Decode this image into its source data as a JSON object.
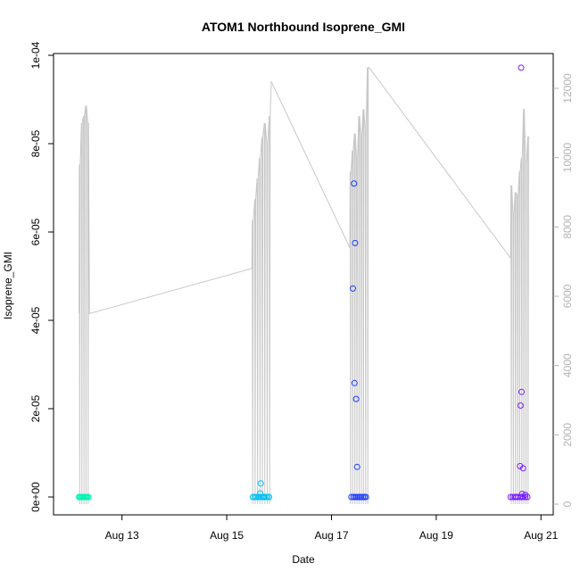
{
  "chart_data": {
    "type": "scatter",
    "title": "ATOM1 Northbound Isoprene_GMI",
    "xlabel": "Date",
    "ylabel": "Isoprene_GMI",
    "x_ticks": [
      {
        "label": "Aug 13",
        "day": 13
      },
      {
        "label": "Aug 15",
        "day": 15
      },
      {
        "label": "Aug 17",
        "day": 17
      },
      {
        "label": "Aug 19",
        "day": 19
      },
      {
        "label": "Aug 21",
        "day": 21
      }
    ],
    "xlim": [
      12.0,
      21.2
    ],
    "ylim": [
      0,
      0.0001
    ],
    "y_ticks": [
      {
        "label": "0e+00",
        "value": 0
      },
      {
        "label": "2e-05",
        "value": 2e-05
      },
      {
        "label": "4e-05",
        "value": 4e-05
      },
      {
        "label": "6e-05",
        "value": 6e-05
      },
      {
        "label": "8e-05",
        "value": 8e-05
      },
      {
        "label": "1e-04",
        "value": 0.0001
      }
    ],
    "y2_ticks": [
      {
        "label": "0",
        "value": 0
      },
      {
        "label": "2000",
        "value": 2000
      },
      {
        "label": "4000",
        "value": 4000
      },
      {
        "label": "6000",
        "value": 6000
      },
      {
        "label": "8000",
        "value": 8000
      },
      {
        "label": "10000",
        "value": 10000
      },
      {
        "label": "12000",
        "value": 12000
      }
    ],
    "y2lim": [
      0,
      12000
    ],
    "altitude_color": "#c8c8c8",
    "altitude_segments": [
      {
        "start": 12.18,
        "end": 12.38,
        "base": 5500,
        "peaks": [
          9800,
          11000,
          11200,
          11500,
          11000
        ],
        "end_value": 5500
      },
      {
        "start": 15.48,
        "end": 15.85,
        "base": 6800,
        "peaks": [
          8200,
          8800,
          9400,
          10000,
          10600,
          11000,
          10400,
          11200
        ],
        "end_value": 12200
      },
      {
        "start": 17.35,
        "end": 17.72,
        "base": 7400,
        "peaks": [
          9600,
          10200,
          10700,
          9900,
          11200,
          10600,
          11400,
          10800,
          12600
        ],
        "end_value": 12600
      },
      {
        "start": 20.42,
        "end": 20.78,
        "base": 7100,
        "peaks": [
          9200,
          8400,
          9000,
          8900,
          9600,
          10000,
          11400,
          9800,
          10600
        ],
        "end_value": 10600
      }
    ],
    "series": [
      {
        "color": "#00f5b4",
        "x": [
          12.18,
          12.2,
          12.22,
          12.24,
          12.26,
          12.28,
          12.3,
          12.32,
          12.34,
          12.36
        ],
        "y": [
          0,
          0,
          0,
          0,
          0,
          0,
          0,
          0,
          0,
          0
        ]
      },
      {
        "color": "#00c1f5",
        "x": [
          15.5,
          15.53,
          15.56,
          15.6,
          15.62,
          15.65,
          15.68,
          15.7,
          15.72,
          15.75,
          15.78,
          15.81,
          15.65,
          15.64
        ],
        "y": [
          0,
          0,
          0,
          0,
          0,
          0,
          0,
          0,
          0,
          0,
          0,
          0,
          3.1e-06,
          8e-07
        ]
      },
      {
        "color": "#1e3cff",
        "x": [
          17.38,
          17.42,
          17.45,
          17.48,
          17.51,
          17.54,
          17.57,
          17.6,
          17.63,
          17.66,
          17.43,
          17.45,
          17.41,
          17.44,
          17.47,
          17.49
        ],
        "y": [
          0,
          0,
          0,
          0,
          0,
          0,
          0,
          0,
          0,
          0,
          7.1e-05,
          5.75e-05,
          4.72e-05,
          2.58e-05,
          2.22e-05,
          6.8e-06
        ]
      },
      {
        "color": "#7a1fff",
        "x": [
          20.42,
          20.46,
          20.5,
          20.53,
          20.56,
          20.6,
          20.63,
          20.66,
          20.7,
          20.74,
          20.62,
          20.63,
          20.61,
          20.6,
          20.66,
          20.64,
          20.7
        ],
        "y": [
          0,
          0,
          0,
          0,
          0,
          0,
          0,
          0,
          0,
          0,
          9.72e-05,
          2.38e-05,
          2.07e-05,
          7e-06,
          6.5e-06,
          7e-07,
          5e-07
        ]
      }
    ]
  }
}
